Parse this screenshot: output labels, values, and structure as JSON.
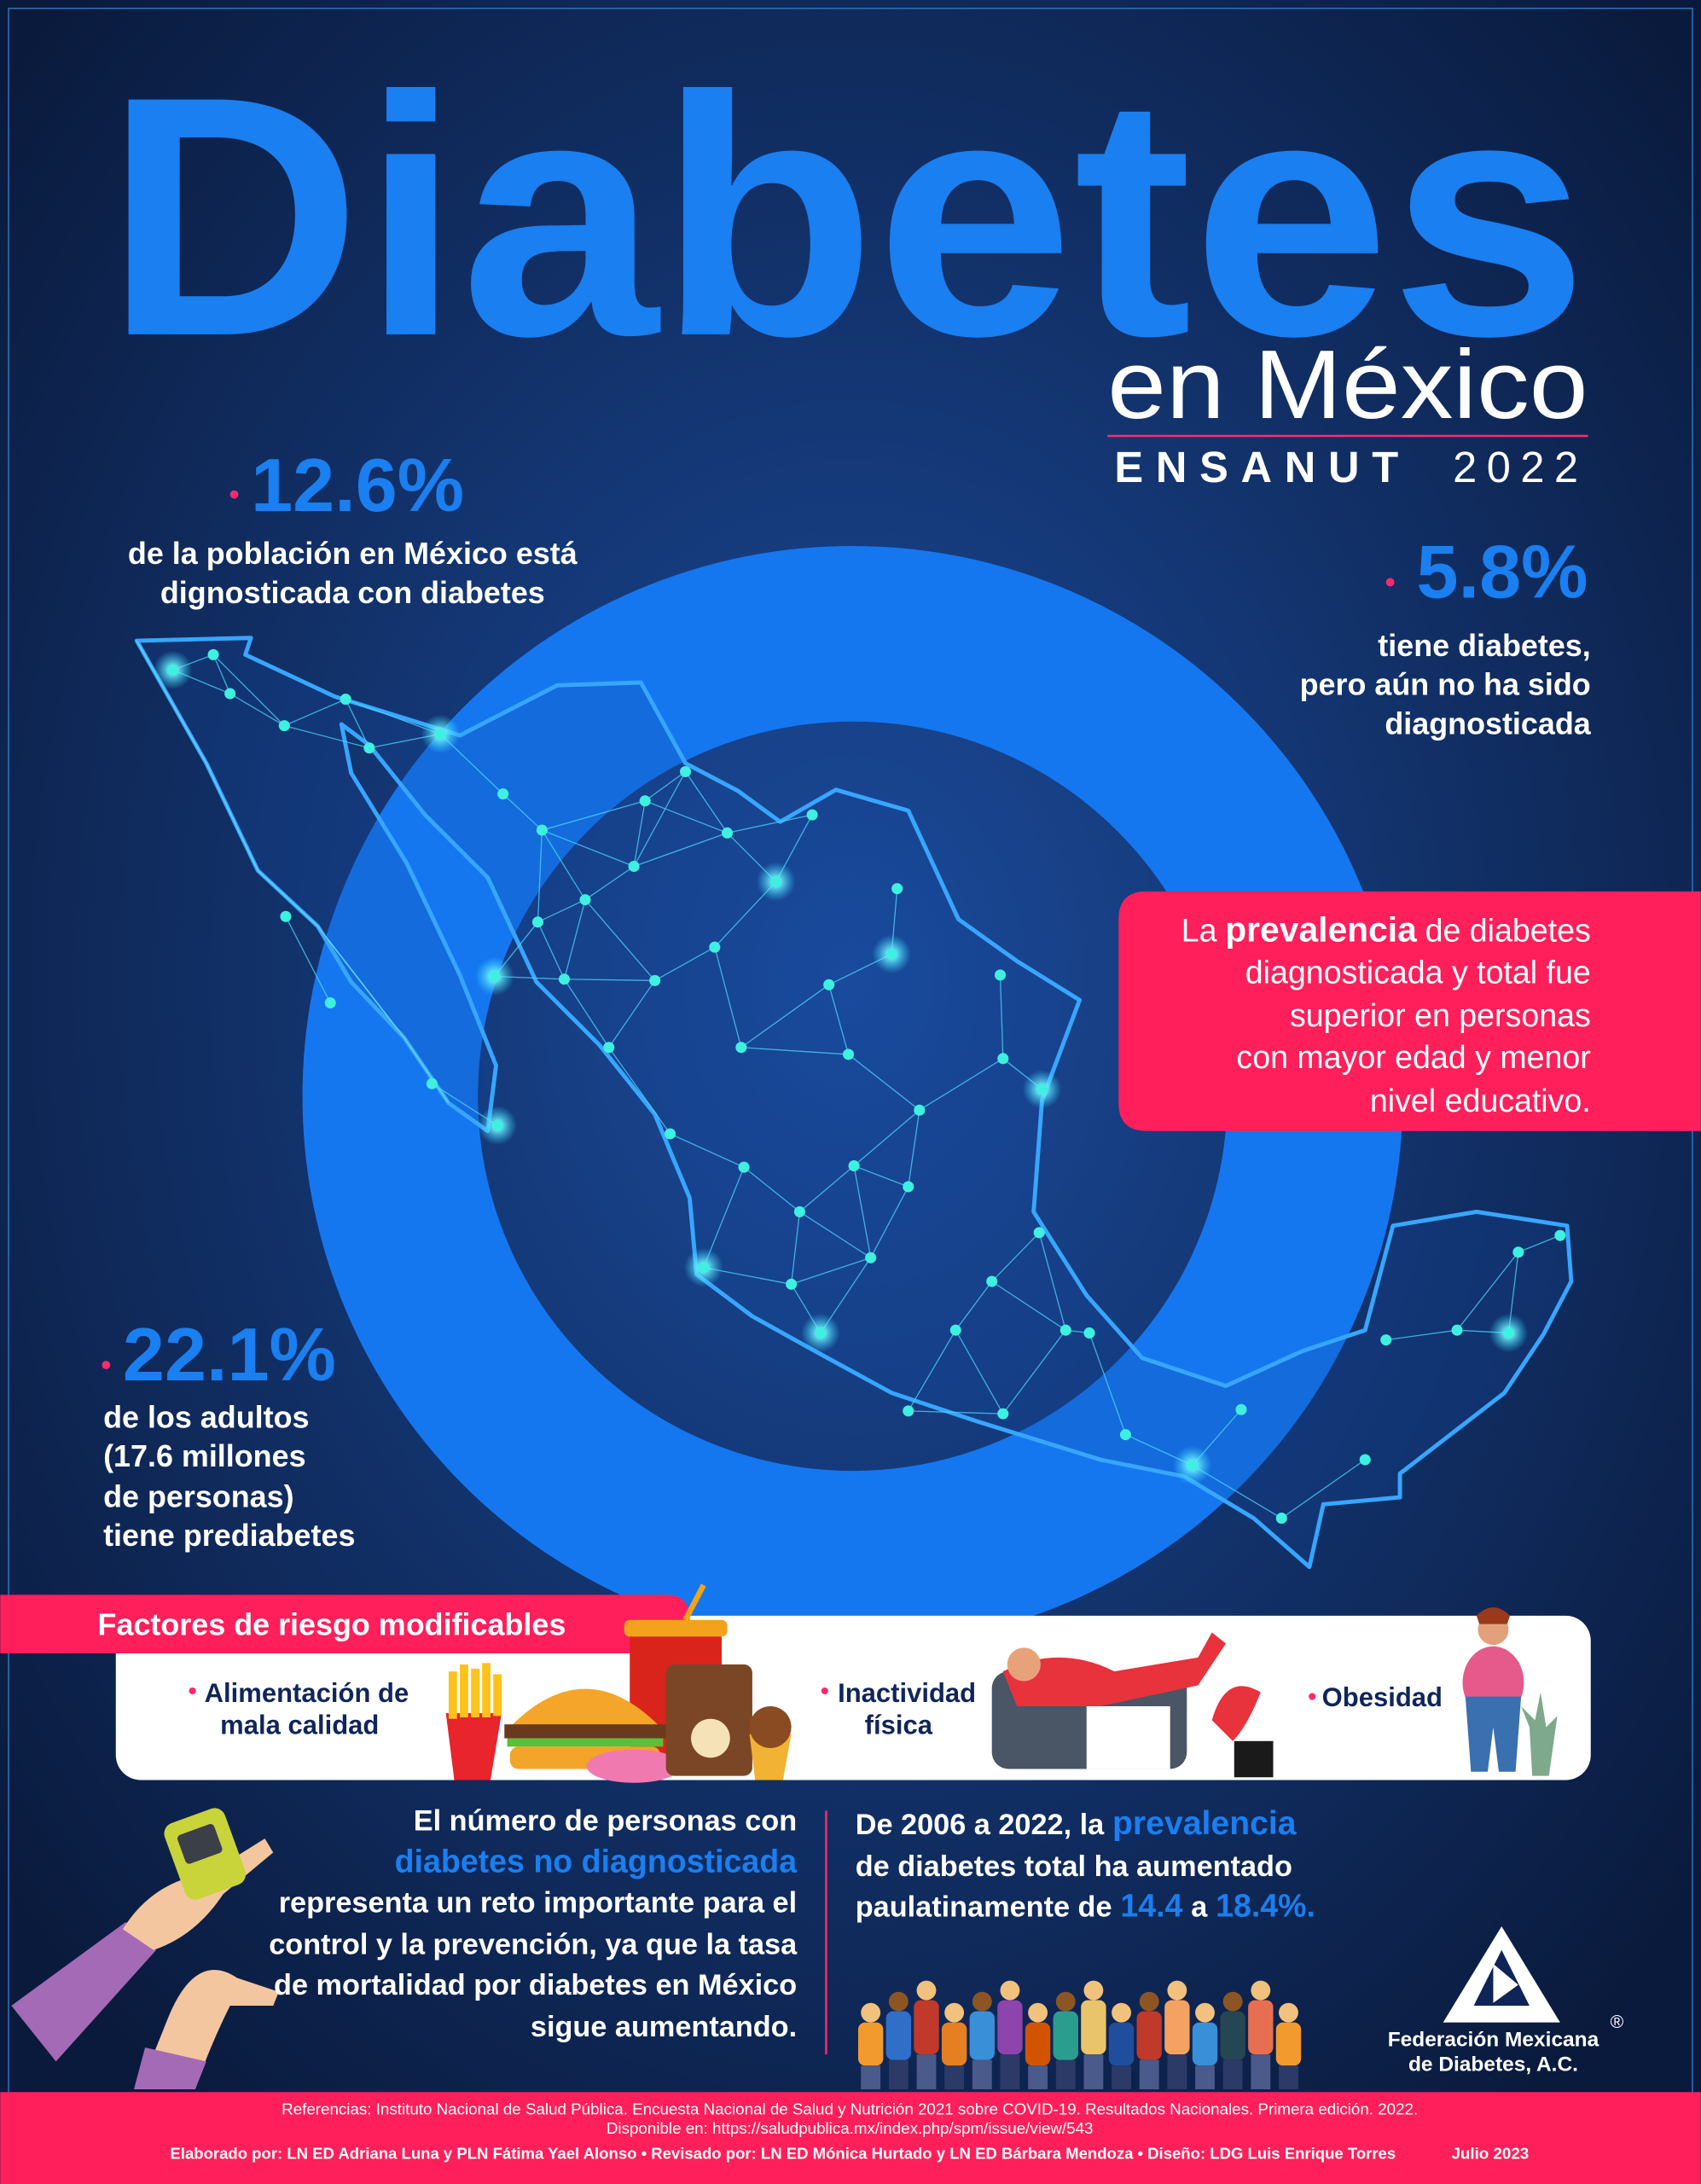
{
  "header": {
    "title": "Diabetes",
    "subtitle": "en México",
    "survey": "ENSANUT",
    "year": "2022"
  },
  "stats": [
    {
      "value": "12.6%",
      "lines": [
        "de la población en México está",
        "dignosticada con diabetes"
      ]
    },
    {
      "value": "5.8%",
      "lines": [
        "tiene diabetes,",
        "pero aún no ha sido",
        "diagnosticada"
      ]
    },
    {
      "value": "22.1%",
      "lines": [
        "de los adultos",
        "(17.6 millones",
        "de personas)",
        "tiene prediabetes"
      ]
    }
  ],
  "highlight_box": {
    "lead": "La",
    "keyword": "prevalencia",
    "line1_rest": "de diabetes",
    "lines": [
      "diagnosticada y total fue",
      "superior en personas",
      "con mayor edad y menor",
      "nivel educativo."
    ]
  },
  "risk_factors": {
    "title": "Factores de riesgo modificables",
    "items": [
      [
        "Alimentación de",
        "mala calidad"
      ],
      [
        "Inactividad",
        "física"
      ],
      [
        "Obesidad"
      ]
    ]
  },
  "undiagnosed": {
    "lines": [
      "El número de personas con",
      "diabetes no diagnosticada",
      "representa un reto importante para el",
      "control y la prevención, ya que la tasa",
      "de mortalidad por diabetes en México",
      "sigue aumentando."
    ]
  },
  "trend": {
    "intro": "De 2006 a 2022, la",
    "keyword": "prevalencia",
    "line2": "de diabetes total ha aumentado",
    "line3": "paulatinamente de",
    "from": "14.4",
    "connector": "a",
    "to": "18.4%."
  },
  "logo": {
    "line1": "Federación Mexicana",
    "line2": "de Diabetes, A.C.",
    "mark": "®"
  },
  "footer": {
    "references": "Referencias:  Instituto Nacional de Salud Pública. Encuesta Nacional de Salud y Nutrición 2021 sobre COVID-19. Resultados Nacionales. Primera edición. 2022.",
    "available": "Disponible en: https://saludpublica.mx/index.php/spm/issue/view/543",
    "credits": "Elaborado por: LN ED Adriana Luna y PLN Fátima Yael Alonso • Revisado por: LN ED Mónica Hurtado y LN ED Bárbara Mendoza • Diseño: LDG Luis Enrique Torres",
    "date": "Julio 2023"
  }
}
